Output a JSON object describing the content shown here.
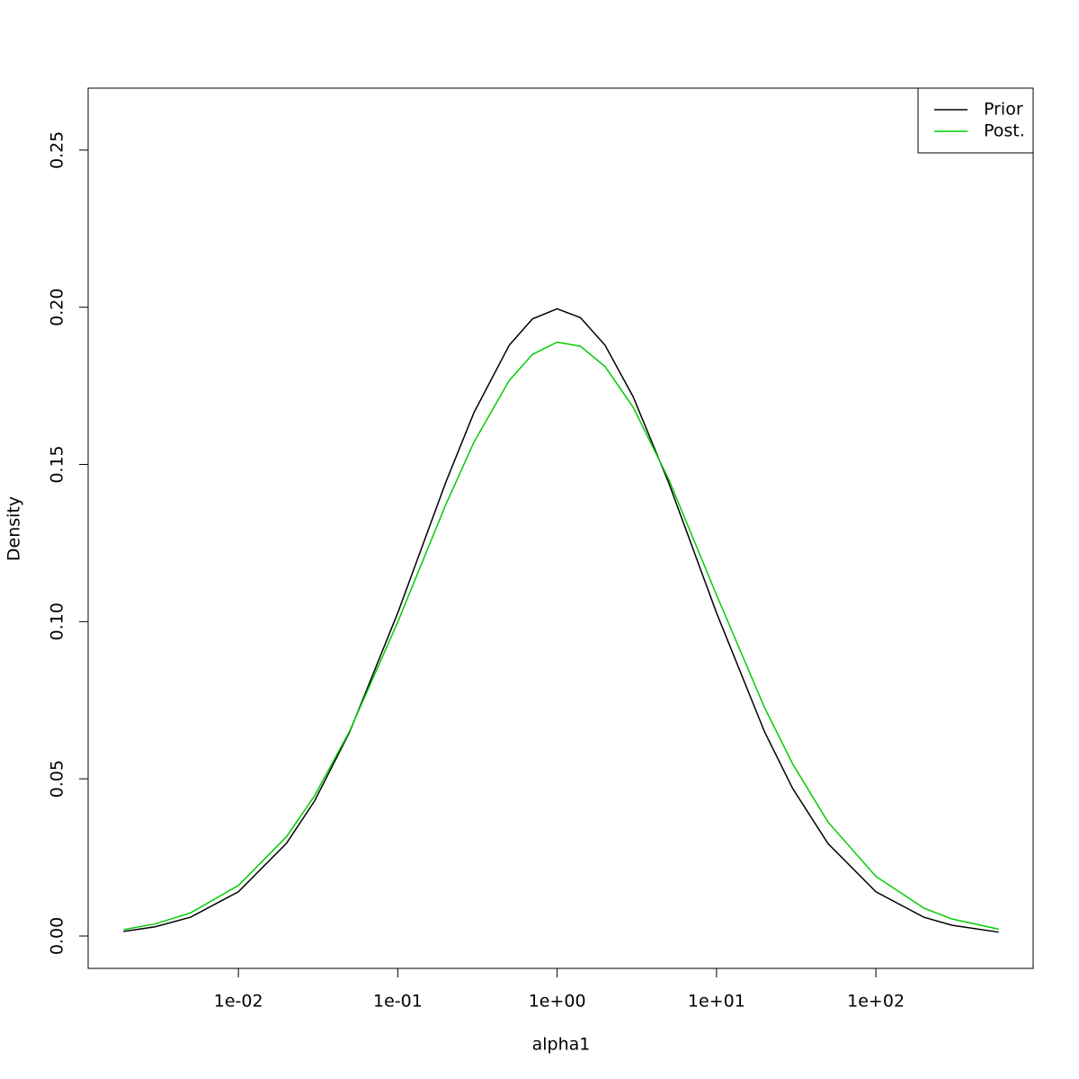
{
  "chart_data": {
    "type": "line",
    "x_label": "alpha1",
    "y_label": "Density",
    "xlog": true,
    "xlim": [
      0.00114,
      970
    ],
    "ylim": [
      -0.0103,
      0.2697
    ],
    "xticks": [
      {
        "value": 0.01,
        "label": "1e-02"
      },
      {
        "value": 0.1,
        "label": "1e-01"
      },
      {
        "value": 1,
        "label": "1e+00"
      },
      {
        "value": 10,
        "label": "1e+01"
      },
      {
        "value": 100,
        "label": "1e+02"
      }
    ],
    "yticks": [
      {
        "value": 0,
        "label": "0.00"
      },
      {
        "value": 0.05,
        "label": "0.05"
      },
      {
        "value": 0.1,
        "label": "0.10"
      },
      {
        "value": 0.15,
        "label": "0.15"
      },
      {
        "value": 0.2,
        "label": "0.20"
      },
      {
        "value": 0.25,
        "label": "0.25"
      }
    ],
    "legend_position": "top-right",
    "x": [
      0.0019,
      0.003,
      0.005,
      0.01,
      0.02,
      0.03,
      0.05,
      0.1,
      0.2,
      0.3,
      0.5,
      0.7,
      1,
      1.4,
      2,
      3,
      5,
      10,
      20,
      30,
      50,
      100,
      200,
      300,
      590
    ],
    "series": [
      {
        "name": "Prior",
        "color": "#000000",
        "values": [
          0.00147,
          0.00294,
          0.00597,
          0.01408,
          0.02945,
          0.0429,
          0.065,
          0.1028,
          0.1443,
          0.1664,
          0.1879,
          0.1963,
          0.1995,
          0.1967,
          0.1879,
          0.1715,
          0.1443,
          0.1028,
          0.065,
          0.047,
          0.02945,
          0.01408,
          0.00597,
          0.00342,
          0.00123
        ]
      },
      {
        "name": "Post.",
        "color": "#00cd00",
        "values": [
          0.00205,
          0.00384,
          0.00735,
          0.01607,
          0.03154,
          0.04455,
          0.0653,
          0.0999,
          0.1372,
          0.157,
          0.1767,
          0.185,
          0.1889,
          0.1876,
          0.1811,
          0.1682,
          0.1454,
          0.1085,
          0.0727,
          0.0548,
          0.0363,
          0.01895,
          0.00889,
          0.00542,
          0.00219
        ]
      }
    ]
  }
}
